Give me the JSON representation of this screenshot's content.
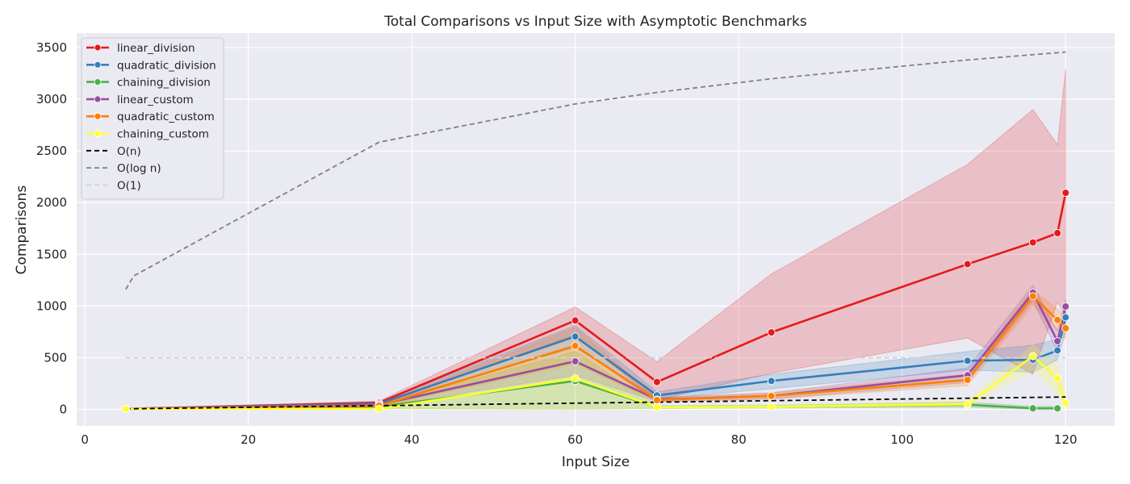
{
  "chart_data": {
    "type": "line",
    "title": "Total Comparisons vs Input Size with Asymptotic Benchmarks",
    "xlabel": "Input Size",
    "ylabel": "Comparisons",
    "xlim": [
      -1,
      126
    ],
    "ylim": [
      -160,
      3640
    ],
    "xticks": [
      0,
      20,
      40,
      60,
      80,
      100,
      120
    ],
    "yticks": [
      0,
      500,
      1000,
      1500,
      2000,
      2500,
      3000,
      3500
    ],
    "grid": true,
    "legend_position": "top-left",
    "background": "#eaeaf2",
    "series": [
      {
        "name": "linear_division",
        "color": "#e41a1c",
        "style": "solid",
        "marker": true,
        "x": [
          5,
          36,
          60,
          70,
          84,
          108,
          116,
          119,
          120
        ],
        "y": [
          5,
          65,
          860,
          265,
          745,
          1405,
          1615,
          1705,
          2095
        ],
        "band_low": [
          5,
          45,
          720,
          90,
          350,
          690,
          340,
          1040,
          900
        ],
        "band_high": [
          5,
          80,
          990,
          460,
          1310,
          2370,
          2900,
          2560,
          3290
        ]
      },
      {
        "name": "quadratic_division",
        "color": "#377eb8",
        "style": "solid",
        "marker": true,
        "x": [
          5,
          36,
          60,
          70,
          84,
          108,
          116,
          119,
          120
        ],
        "y": [
          5,
          55,
          705,
          135,
          275,
          470,
          480,
          570,
          890
        ],
        "band_low": [
          5,
          40,
          600,
          100,
          200,
          380,
          360,
          480,
          760
        ],
        "band_high": [
          5,
          70,
          810,
          170,
          340,
          560,
          620,
          680,
          1010
        ]
      },
      {
        "name": "chaining_division",
        "color": "#4daf4a",
        "style": "solid",
        "marker": true,
        "x": [
          5,
          36,
          60,
          70,
          84,
          108,
          116,
          119
        ],
        "y": [
          5,
          25,
          275,
          20,
          25,
          45,
          10,
          10
        ],
        "band_low": [
          5,
          10,
          0,
          10,
          15,
          20,
          0,
          0
        ],
        "band_high": [
          5,
          40,
          560,
          35,
          40,
          70,
          30,
          30
        ]
      },
      {
        "name": "linear_custom",
        "color": "#984ea3",
        "style": "solid",
        "marker": true,
        "x": [
          5,
          36,
          60,
          70,
          84,
          108,
          116,
          119,
          120
        ],
        "y": [
          5,
          45,
          465,
          95,
          130,
          330,
          1130,
          660,
          995
        ],
        "band_low": [
          5,
          30,
          330,
          75,
          100,
          260,
          1050,
          560,
          850
        ],
        "band_high": [
          5,
          60,
          600,
          115,
          160,
          400,
          1200,
          760,
          1060
        ]
      },
      {
        "name": "quadratic_custom",
        "color": "#ff7f00",
        "style": "solid",
        "marker": true,
        "x": [
          5,
          36,
          60,
          70,
          84,
          108,
          116,
          119,
          120
        ],
        "y": [
          5,
          35,
          615,
          90,
          130,
          285,
          1095,
          865,
          785
        ],
        "band_low": [
          5,
          25,
          440,
          70,
          100,
          230,
          1010,
          760,
          680
        ],
        "band_high": [
          5,
          50,
          790,
          110,
          160,
          340,
          1160,
          970,
          900
        ]
      },
      {
        "name": "chaining_custom",
        "color": "#ffff33",
        "style": "solid",
        "marker": true,
        "x": [
          5,
          36,
          60,
          70,
          84,
          108,
          116,
          119,
          120
        ],
        "y": [
          5,
          5,
          300,
          20,
          25,
          50,
          515,
          300,
          60
        ],
        "band_low": [
          5,
          0,
          0,
          10,
          15,
          30,
          380,
          160,
          20
        ],
        "band_high": [
          5,
          15,
          620,
          30,
          40,
          80,
          620,
          420,
          120
        ]
      },
      {
        "name": "O(n)",
        "color": "#000000",
        "style": "dashed",
        "marker": false,
        "x": [
          5,
          6,
          36,
          60,
          70,
          84,
          108,
          116,
          119,
          120
        ],
        "y": [
          5,
          6,
          36,
          60,
          70,
          84,
          108,
          116,
          119,
          120
        ]
      },
      {
        "name": "O(log n)",
        "color": "#808080",
        "style": "dashed",
        "marker": false,
        "x": [
          5,
          6,
          36,
          60,
          70,
          84,
          108,
          116,
          119,
          120
        ],
        "y": [
          1161,
          1292,
          2585,
          2954,
          3066,
          3198,
          3380,
          3431,
          3450,
          3456
        ]
      },
      {
        "name": "O(1)",
        "color": "#d3d3d3",
        "style": "dashed",
        "marker": false,
        "x": [
          5,
          120
        ],
        "y": [
          500,
          500
        ]
      }
    ]
  }
}
